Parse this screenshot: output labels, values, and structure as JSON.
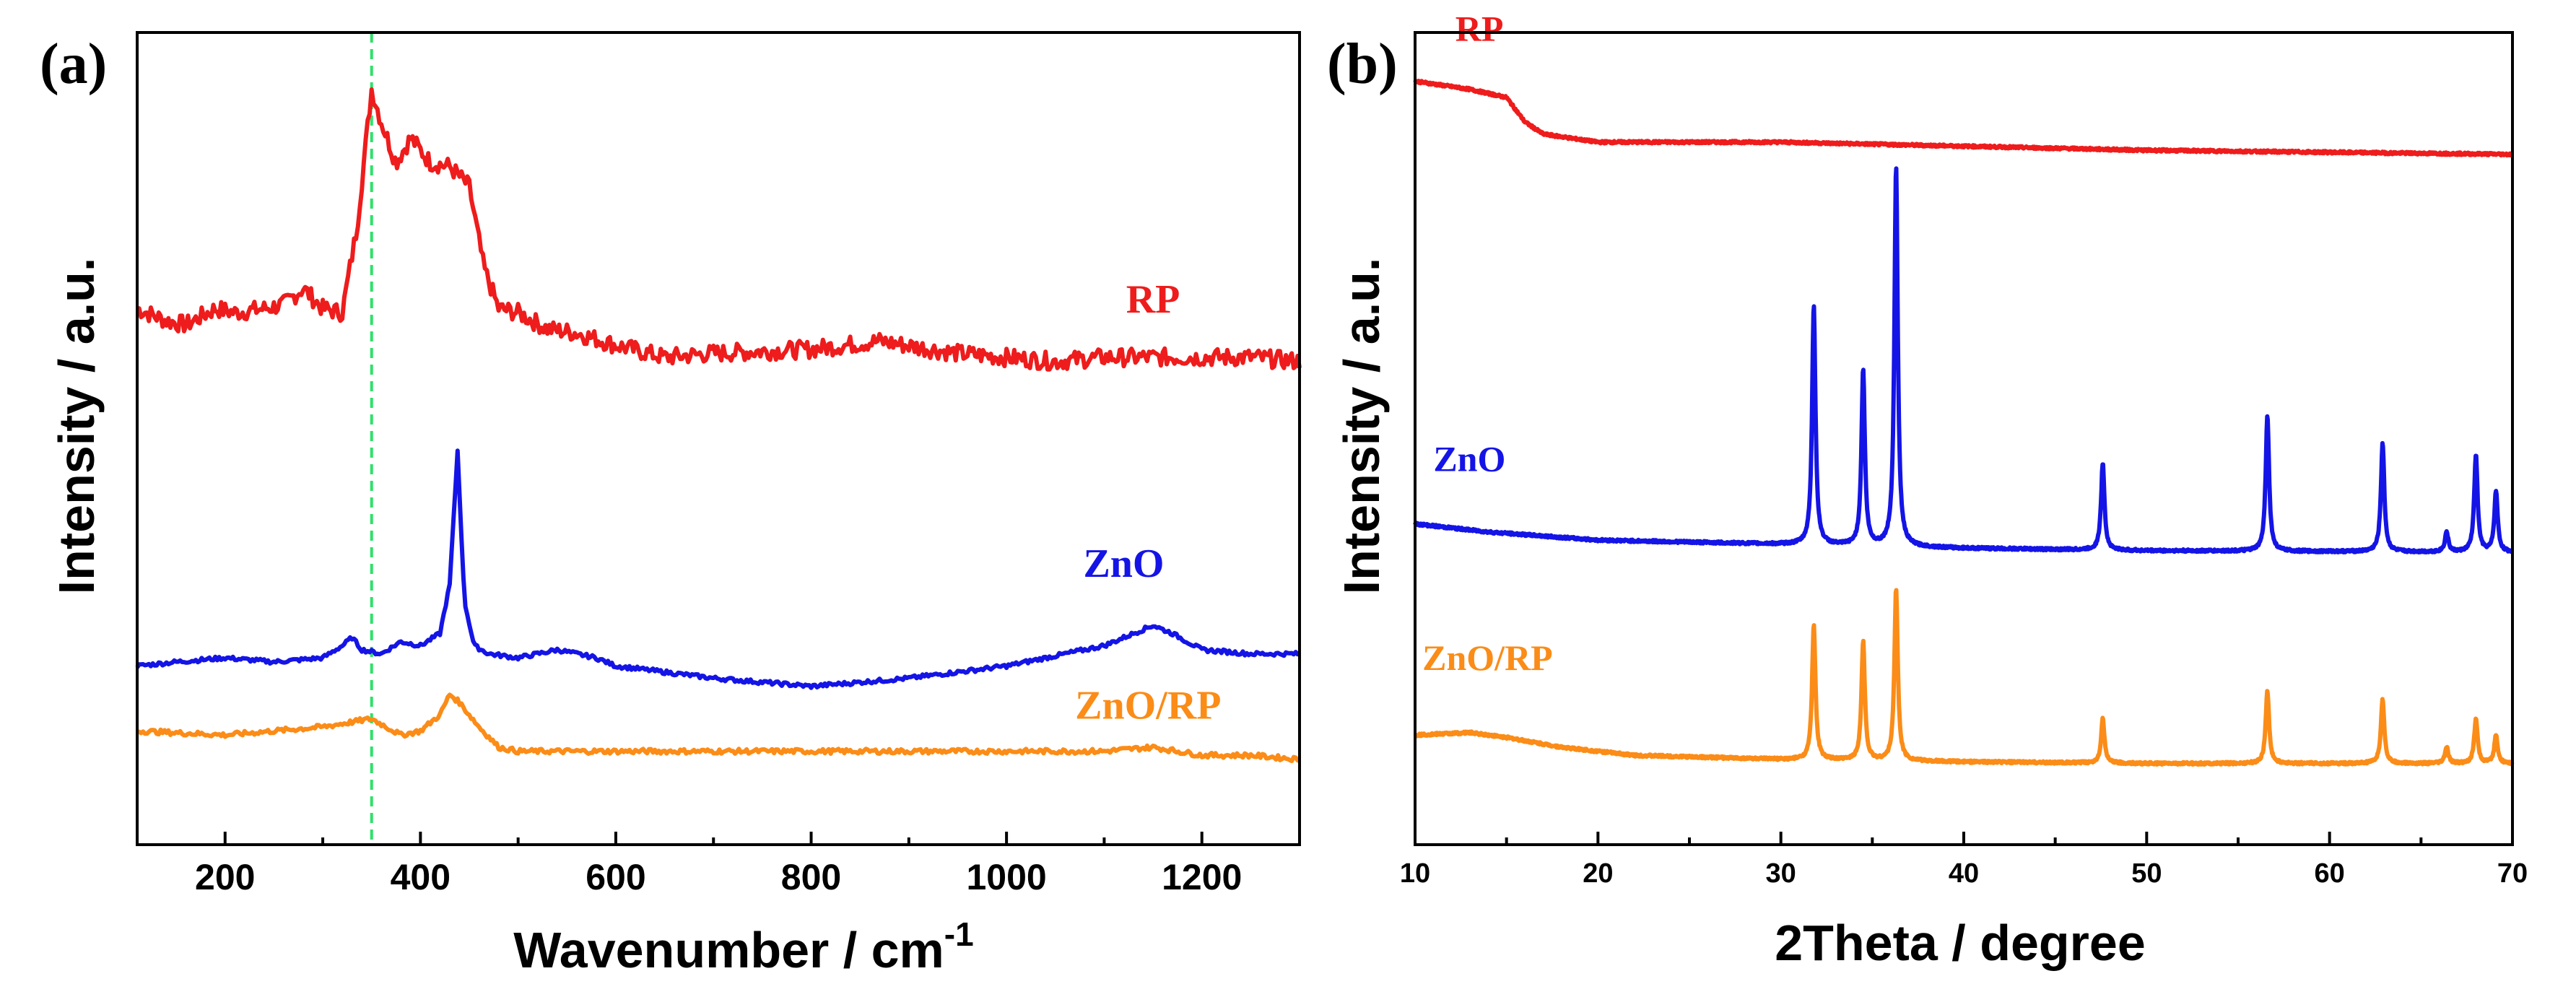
{
  "colors": {
    "rp": "#ee1c1c",
    "zno": "#1414e6",
    "znorp": "#fb8c17",
    "marker": "#2fe06a"
  },
  "chart_data": [
    {
      "panel": "(a)",
      "type": "line",
      "xlabel": "Wavenumber / cm",
      "xlabel_sup": "-1",
      "ylabel": "Intensity / a.u.",
      "xlim": [
        110,
        1300
      ],
      "ylim": [
        0,
        10
      ],
      "xticks": [
        "200",
        "400",
        "600",
        "800",
        "1000",
        "1200"
      ],
      "marker_line_x": 350,
      "series": [
        {
          "name": "RP",
          "color": "#ee1c1c",
          "x": [
            110,
            140,
            160,
            190,
            210,
            240,
            260,
            280,
            300,
            320,
            335,
            350,
            360,
            375,
            390,
            410,
            430,
            450,
            465,
            480,
            500,
            530,
            560,
            600,
            650,
            700,
            800,
            870,
            950,
            1000,
            1050,
            1100,
            1150,
            1200,
            1250,
            1300
          ],
          "y": [
            6.6,
            6.45,
            6.4,
            6.6,
            6.55,
            6.6,
            6.65,
            6.85,
            6.6,
            6.55,
            7.6,
            9.3,
            8.9,
            8.4,
            8.7,
            8.4,
            8.35,
            8.1,
            7.1,
            6.6,
            6.55,
            6.35,
            6.3,
            6.15,
            6.0,
            6.05,
            6.1,
            6.2,
            6.05,
            6.0,
            5.95,
            6.0,
            6.0,
            6.0,
            6.0,
            5.95
          ]
        },
        {
          "name": "ZnO",
          "color": "#1414e6",
          "x": [
            110,
            150,
            200,
            250,
            300,
            320,
            330,
            340,
            360,
            380,
            400,
            420,
            430,
            438,
            445,
            455,
            470,
            500,
            540,
            580,
            600,
            700,
            800,
            900,
            1000,
            1100,
            1130,
            1150,
            1170,
            1200,
            1250,
            1300
          ],
          "y": [
            2.2,
            2.25,
            2.3,
            2.25,
            2.3,
            2.45,
            2.55,
            2.4,
            2.35,
            2.5,
            2.45,
            2.6,
            3.2,
            4.85,
            3.0,
            2.45,
            2.35,
            2.3,
            2.4,
            2.3,
            2.2,
            2.05,
            1.95,
            2.05,
            2.2,
            2.45,
            2.6,
            2.7,
            2.6,
            2.4,
            2.35,
            2.35
          ]
        },
        {
          "name": "ZnO/RP",
          "color": "#fb8c17",
          "x": [
            110,
            200,
            250,
            300,
            350,
            380,
            400,
            420,
            430,
            440,
            450,
            460,
            480,
            500,
            600,
            800,
            1000,
            1100,
            1150,
            1200,
            1250,
            1300
          ],
          "y": [
            1.4,
            1.35,
            1.4,
            1.45,
            1.55,
            1.35,
            1.4,
            1.6,
            1.85,
            1.75,
            1.6,
            1.45,
            1.2,
            1.15,
            1.15,
            1.15,
            1.15,
            1.15,
            1.2,
            1.1,
            1.1,
            1.05
          ]
        }
      ],
      "labels": [
        {
          "text": "RP",
          "x": 1150,
          "y": 6.55
        },
        {
          "text": "ZnO",
          "x": 1120,
          "y": 3.3
        },
        {
          "text": "ZnO/RP",
          "x": 1145,
          "y": 1.55
        }
      ]
    },
    {
      "panel": "(b)",
      "type": "line",
      "xlabel": "2Theta / degree",
      "ylabel": "Intensity / a.u.",
      "xlim": [
        10,
        70
      ],
      "ylim": [
        0,
        10
      ],
      "xticks": [
        "10",
        "20",
        "30",
        "40",
        "50",
        "60",
        "70"
      ],
      "series": [
        {
          "name": "RP",
          "color": "#ee1c1c",
          "baseline": [
            [
              10,
              9.4
            ],
            [
              13,
              9.3
            ],
            [
              15,
              9.2
            ],
            [
              16,
              8.9
            ],
            [
              17,
              8.75
            ],
            [
              20,
              8.65
            ],
            [
              30,
              8.65
            ],
            [
              40,
              8.6
            ],
            [
              50,
              8.55
            ],
            [
              70,
              8.5
            ]
          ],
          "peaks": []
        },
        {
          "name": "ZnO",
          "color": "#1414e6",
          "baseline": [
            [
              10,
              3.95
            ],
            [
              14,
              3.85
            ],
            [
              20,
              3.75
            ],
            [
              30,
              3.7
            ],
            [
              40,
              3.65
            ],
            [
              50,
              3.62
            ],
            [
              70,
              3.6
            ]
          ],
          "peaks": [
            [
              31.8,
              6.65
            ],
            [
              34.5,
              5.85
            ],
            [
              36.3,
              8.35
            ],
            [
              47.6,
              4.7
            ],
            [
              56.6,
              5.3
            ],
            [
              62.9,
              4.95
            ],
            [
              66.4,
              3.85
            ],
            [
              68.0,
              4.8
            ],
            [
              69.1,
              4.35
            ]
          ]
        },
        {
          "name": "ZnO/RP",
          "color": "#fb8c17",
          "baseline": [
            [
              10,
              1.35
            ],
            [
              13,
              1.38
            ],
            [
              15,
              1.32
            ],
            [
              18,
              1.2
            ],
            [
              22,
              1.1
            ],
            [
              30,
              1.05
            ],
            [
              40,
              1.02
            ],
            [
              50,
              1.0
            ],
            [
              70,
              1.0
            ]
          ],
          "peaks": [
            [
              31.8,
              2.7
            ],
            [
              34.5,
              2.5
            ],
            [
              36.3,
              3.15
            ],
            [
              47.6,
              1.55
            ],
            [
              56.6,
              1.9
            ],
            [
              62.9,
              1.8
            ],
            [
              66.4,
              1.2
            ],
            [
              68.0,
              1.55
            ],
            [
              69.1,
              1.35
            ]
          ]
        }
      ],
      "labels": [
        {
          "text": "RP",
          "x": 12.2,
          "y": 9.9
        },
        {
          "text": "ZnO",
          "x": 11.0,
          "y": 4.6
        },
        {
          "text": "ZnO/RP",
          "x": 10.4,
          "y": 2.15
        }
      ]
    }
  ]
}
